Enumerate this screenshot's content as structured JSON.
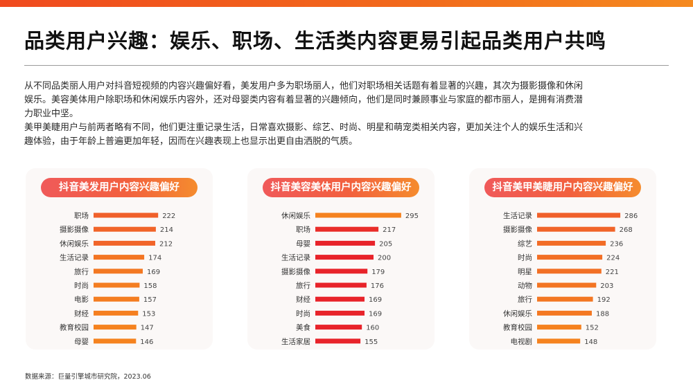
{
  "header": {
    "title": "品类用户兴趣：娱乐、职场、生活类内容更易引起品类用户共鸣"
  },
  "intro": {
    "line1": "从不同品类丽人用户对抖音短视频的内容兴趣偏好看，美发用户多为职场丽人，他们对职场相关话题有着显著的兴趣，其次为摄影摄像和休闲",
    "line2": "娱乐。美容美体用户除职场和休闲娱乐内容外，还对母婴类内容有着显著的兴趣倾向，他们是同时兼顾事业与家庭的都市丽人，是拥有消费潜",
    "line3": "力职业中坚。",
    "line4": "美甲美睫用户与前两者略有不同，他们更注重记录生活，日常喜欢摄影、综艺、时尚、明星和萌宠类相关内容，更加关注个人的娱乐生活和兴",
    "line5": "趣体验，由于年龄上普遍更加年轻，因而在兴趣表现上也显示出更自由洒脱的气质。"
  },
  "colors": {
    "accent_orange": "#f5821f",
    "accent_red": "#e8232a",
    "bar_top": "#f0602a"
  },
  "chart_data": [
    {
      "type": "bar",
      "orientation": "horizontal",
      "title": "抖音美发用户内容兴趣偏好",
      "categories": [
        "职场",
        "摄影摄像",
        "休闲娱乐",
        "生活记录",
        "旅行",
        "时尚",
        "电影",
        "财经",
        "教育校园",
        "母婴"
      ],
      "values": [
        222,
        214,
        212,
        174,
        169,
        158,
        157,
        153,
        147,
        146
      ],
      "xlim": [
        0,
        300
      ],
      "grid": false,
      "legend": "none"
    },
    {
      "type": "bar",
      "orientation": "horizontal",
      "title": "抖音美容美体用户内容兴趣偏好",
      "categories": [
        "休闲娱乐",
        "职场",
        "母婴",
        "生活记录",
        "摄影摄像",
        "旅行",
        "财经",
        "时尚",
        "美食",
        "生活家居"
      ],
      "values": [
        295,
        217,
        205,
        200,
        179,
        176,
        169,
        169,
        160,
        155
      ],
      "xlim": [
        0,
        300
      ],
      "grid": false,
      "legend": "none"
    },
    {
      "type": "bar",
      "orientation": "horizontal",
      "title": "抖音美甲美睫用户内容兴趣偏好",
      "categories": [
        "生活记录",
        "摄影摄像",
        "综艺",
        "时尚",
        "明星",
        "动物",
        "旅行",
        "休闲娱乐",
        "教育校园",
        "电视剧"
      ],
      "values": [
        286,
        268,
        236,
        224,
        221,
        203,
        192,
        188,
        152,
        148
      ],
      "xlim": [
        0,
        300
      ],
      "grid": false,
      "legend": "none"
    }
  ],
  "footer": {
    "source": "数据来源：巨量引擎城市研究院，2023.06"
  }
}
